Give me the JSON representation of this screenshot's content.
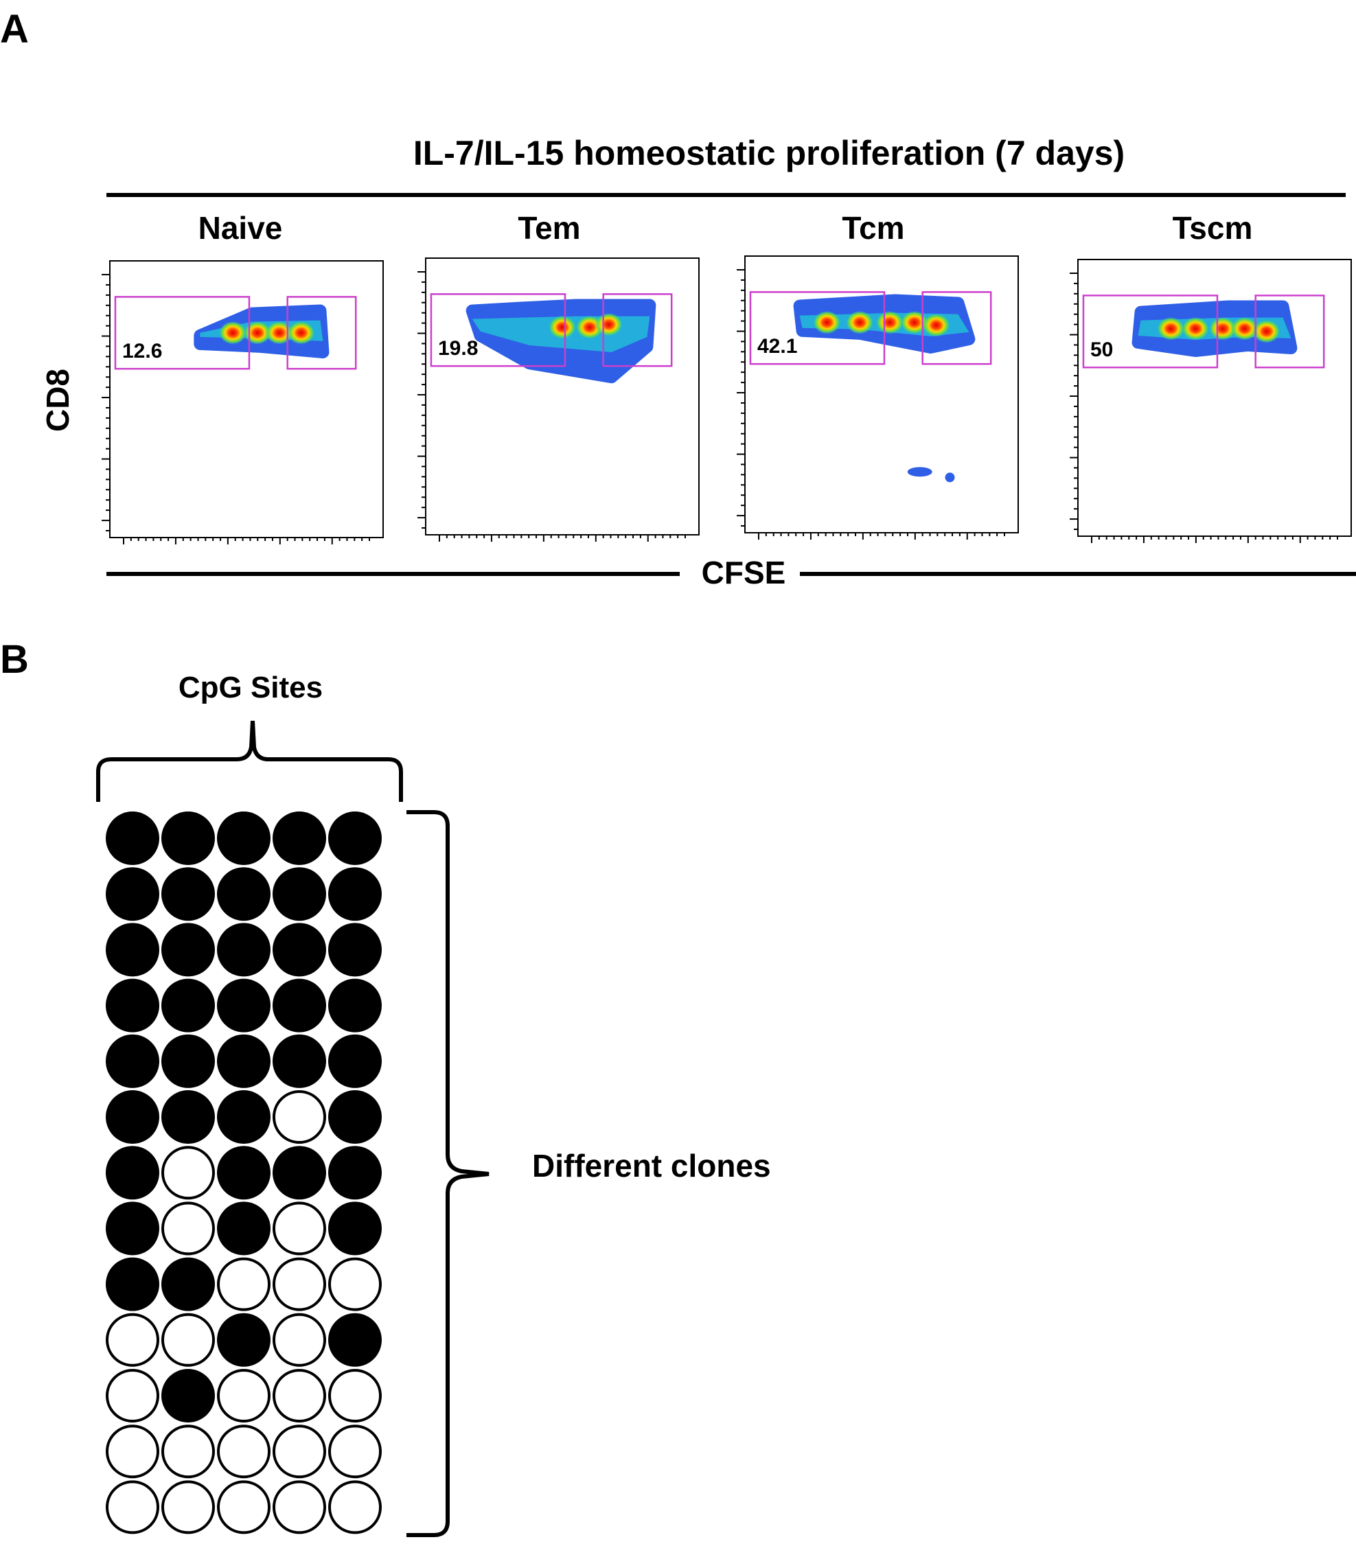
{
  "panel_a": {
    "letter": "A",
    "title": "IL-7/IL-15 homeostatic proliferation (7 days)",
    "y_axis_label": "CD8",
    "x_axis_label": "CFSE",
    "plots": [
      {
        "name": "Naive",
        "gate_value": "12.6"
      },
      {
        "name": "Tem",
        "gate_value": "19.8"
      },
      {
        "name": "Tcm",
        "gate_value": "42.1"
      },
      {
        "name": "Tscm",
        "gate_value": "50"
      }
    ],
    "gate_color": "#cc3fcc"
  },
  "panel_b": {
    "letter": "B",
    "columns_label": "CpG Sites",
    "rows_label": "Different clones",
    "methylation_matrix": [
      [
        1,
        1,
        1,
        1,
        1
      ],
      [
        1,
        1,
        1,
        1,
        1
      ],
      [
        1,
        1,
        1,
        1,
        1
      ],
      [
        1,
        1,
        1,
        1,
        1
      ],
      [
        1,
        1,
        1,
        1,
        1
      ],
      [
        1,
        1,
        1,
        0,
        1
      ],
      [
        1,
        0,
        1,
        1,
        1
      ],
      [
        1,
        0,
        1,
        0,
        1
      ],
      [
        1,
        1,
        0,
        0,
        0
      ],
      [
        0,
        0,
        1,
        0,
        1
      ],
      [
        0,
        1,
        0,
        0,
        0
      ],
      [
        0,
        0,
        0,
        0,
        0
      ],
      [
        0,
        0,
        0,
        0,
        0
      ]
    ]
  }
}
